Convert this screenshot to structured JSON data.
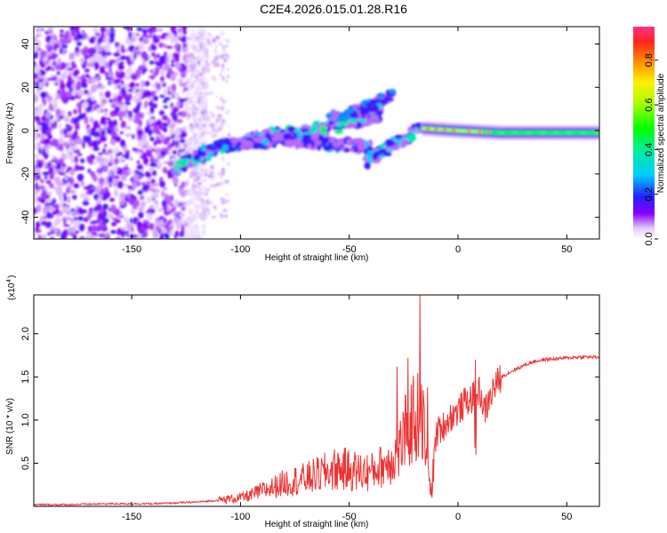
{
  "figure": {
    "title": "C2E4.2026.015.01.28.R16"
  },
  "chart_data": [
    {
      "type": "heatmap",
      "title": "C2E4.2026.015.01.28.R16",
      "xlabel": "Height of straight line (km)",
      "ylabel": "Frequency (Hz)",
      "xlim": [
        -195,
        65
      ],
      "ylim": [
        -50,
        48
      ],
      "xticks": [
        -150,
        -100,
        -50,
        0,
        50
      ],
      "yticks": [
        -40,
        -20,
        0,
        20,
        40
      ],
      "colorbar": {
        "label": "Normalized spectral amplitude",
        "range": [
          0,
          0.95
        ],
        "ticks": [
          0.0,
          0.2,
          0.4,
          0.6,
          0.8
        ]
      },
      "features": [
        {
          "kind": "noise-region",
          "x_range": [
            -195,
            -125
          ],
          "amplitude": 0.15
        },
        {
          "kind": "ridge",
          "x": [
            -130,
            -110,
            -90,
            -70,
            -50,
            -35
          ],
          "y": [
            -17,
            -8,
            -3,
            0,
            3,
            8
          ],
          "amplitude": 0.35
        },
        {
          "kind": "ridge",
          "x": [
            -120,
            -100,
            -80,
            -60,
            -40
          ],
          "y": [
            -10,
            -6,
            -4,
            -6,
            -8
          ],
          "amplitude": 0.2
        },
        {
          "kind": "ridge",
          "x": [
            -60,
            -50,
            -40,
            -30
          ],
          "y": [
            5,
            8,
            12,
            16
          ],
          "amplitude": 0.25
        },
        {
          "kind": "ridge",
          "x": [
            -42,
            -32,
            -22,
            -16
          ],
          "y": [
            -14,
            -8,
            -2,
            3
          ],
          "amplitude": 0.3
        },
        {
          "kind": "line",
          "x": [
            -16,
            0,
            20,
            40,
            65
          ],
          "y": [
            1,
            0,
            -1,
            -1,
            -1
          ],
          "amplitude": 0.6
        }
      ]
    },
    {
      "type": "line",
      "xlabel": "Height of straight line (km)",
      "ylabel": "SNR (10 * v/v)",
      "yscale_label": "(x10",
      "yscale_exp": "4",
      "xlim": [
        -195,
        65
      ],
      "ylim": [
        0,
        2.45
      ],
      "xticks": [
        -150,
        -100,
        -50,
        0,
        50
      ],
      "yticks": [
        0.5,
        1.0,
        1.5,
        2.0
      ],
      "ytick_labels": [
        "0.5",
        "1.0",
        "1.5",
        "2.0"
      ],
      "series": [
        {
          "color": "#ee3333",
          "x": [
            -195,
            -180,
            -160,
            -140,
            -120,
            -110,
            -100,
            -95,
            -90,
            -85,
            -80,
            -75,
            -70,
            -65,
            -60,
            -55,
            -50,
            -45,
            -40,
            -35,
            -30,
            -27,
            -25,
            -22,
            -20,
            -18,
            -16,
            -14,
            -12,
            -10,
            -6,
            -3,
            0,
            3,
            6,
            9,
            10,
            12,
            14,
            16,
            20,
            25,
            30,
            35,
            40,
            45,
            50,
            55,
            60,
            65
          ],
          "y": [
            0.02,
            0.02,
            0.03,
            0.03,
            0.05,
            0.07,
            0.1,
            0.13,
            0.18,
            0.22,
            0.27,
            0.3,
            0.32,
            0.36,
            0.4,
            0.44,
            0.42,
            0.4,
            0.4,
            0.47,
            0.55,
            0.65,
            0.8,
            0.95,
            1.05,
            1.0,
            0.95,
            0.3,
            0.2,
            0.85,
            0.95,
            1.05,
            1.1,
            1.2,
            1.25,
            1.3,
            1.35,
            1.1,
            1.2,
            1.35,
            1.5,
            1.57,
            1.63,
            1.68,
            1.7,
            1.71,
            1.72,
            1.73,
            1.73,
            1.73
          ]
        }
      ],
      "spikes": [
        {
          "x": -17.5,
          "y": 2.45
        },
        {
          "x": -23,
          "y": 1.72
        },
        {
          "x": -28,
          "y": 1.62
        },
        {
          "x": -14,
          "y": 1.38
        },
        {
          "x": 8,
          "y": 1.7
        }
      ]
    }
  ]
}
